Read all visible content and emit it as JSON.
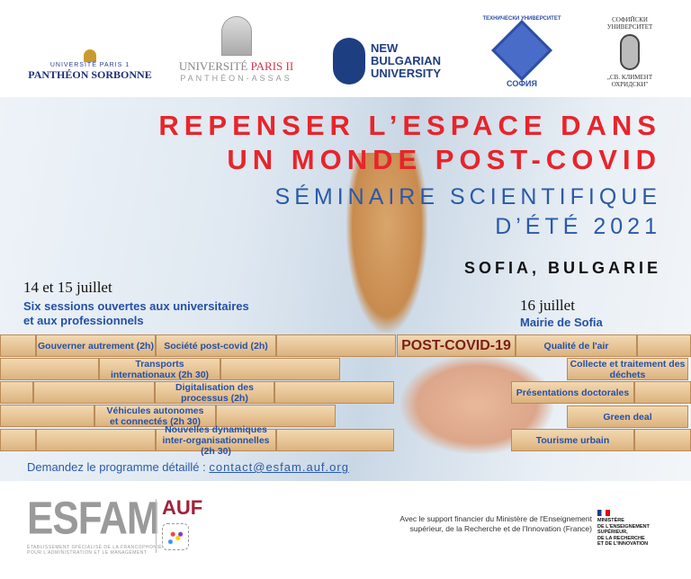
{
  "logos": {
    "paris1": {
      "line1": "UNIVERSITÉ PARIS 1",
      "line2": "PANTHÉON SORBONNE"
    },
    "paris2": {
      "line1a": "UNIVERSITÉ ",
      "line1b": "PARIS II",
      "line2": "PANTHÉON-ASSAS"
    },
    "nbu": {
      "line1": "NEW",
      "line2": "BULGARIAN",
      "line3": "UNIVERSITY"
    },
    "tu": {
      "arc": "ТЕХНИЧЕСКИ УНИВЕРСИТЕТ",
      "bottom": "СОФИЯ"
    },
    "su": {
      "top1": "СОФИЙСКИ",
      "top2": "УНИВЕРСИТЕТ",
      "bottom1": "„СВ. КЛИМЕНТ",
      "bottom2": "ОХРИДСКИ\""
    }
  },
  "title": {
    "line1": "REPENSER L’ESPACE DANS",
    "line2": "UN MONDE POST-COVID"
  },
  "subtitle": {
    "line1": "SÉMINAIRE SCIENTIFIQUE",
    "line2": "D’ÉTÉ 2021"
  },
  "location": "SOFIA, BULGARIE",
  "left": {
    "date": "14 et 15 juillet",
    "desc1": "Six sessions ouvertes aux universitaires",
    "desc2": "et aux professionnels",
    "sessions": [
      "Gouverner autrement (2h)",
      "Société post-covid (2h)",
      "Transports internationaux (2h 30)",
      "Digitalisation des processus (2h)",
      "Véhicules autonomes et connectés (2h 30)",
      "Nouvelles dynamiques inter-organisationnelles (2h 30)"
    ]
  },
  "center_block": "POST-COVID-19",
  "right": {
    "date": "16 juillet",
    "place": "Mairie de Sofia",
    "sessions": [
      "Qualité de l'air",
      "Collecte et traitement des déchets",
      "Présentations doctorales",
      "Green deal",
      "Tourisme urbain"
    ]
  },
  "contact": {
    "label": "Demandez le programme détaillé :",
    "email": "contact@esfam.auf.org"
  },
  "footer": {
    "esfam": "ESFAM",
    "auf": "AUF",
    "esfam_sub1": "ÉTABLISSEMENT SPÉCIALISÉ DE LA FRANCOPHONIE",
    "esfam_sub2": "POUR L'ADMINISTRATION ET LE MANAGEMENT",
    "support1": "Avec le support financier du Ministère de l'Enseignement",
    "support2": "supérieur, de la Recherche et de l'Innovation (France)",
    "ministry": [
      "MINISTÈRE",
      "DE L'ENSEIGNEMENT",
      "SUPÉRIEUR,",
      "DE LA RECHERCHE",
      "ET DE L'INNOVATION"
    ]
  },
  "colors": {
    "title_red": "#e8242b",
    "blue": "#2a5aa8",
    "wood": "#e6c293"
  }
}
